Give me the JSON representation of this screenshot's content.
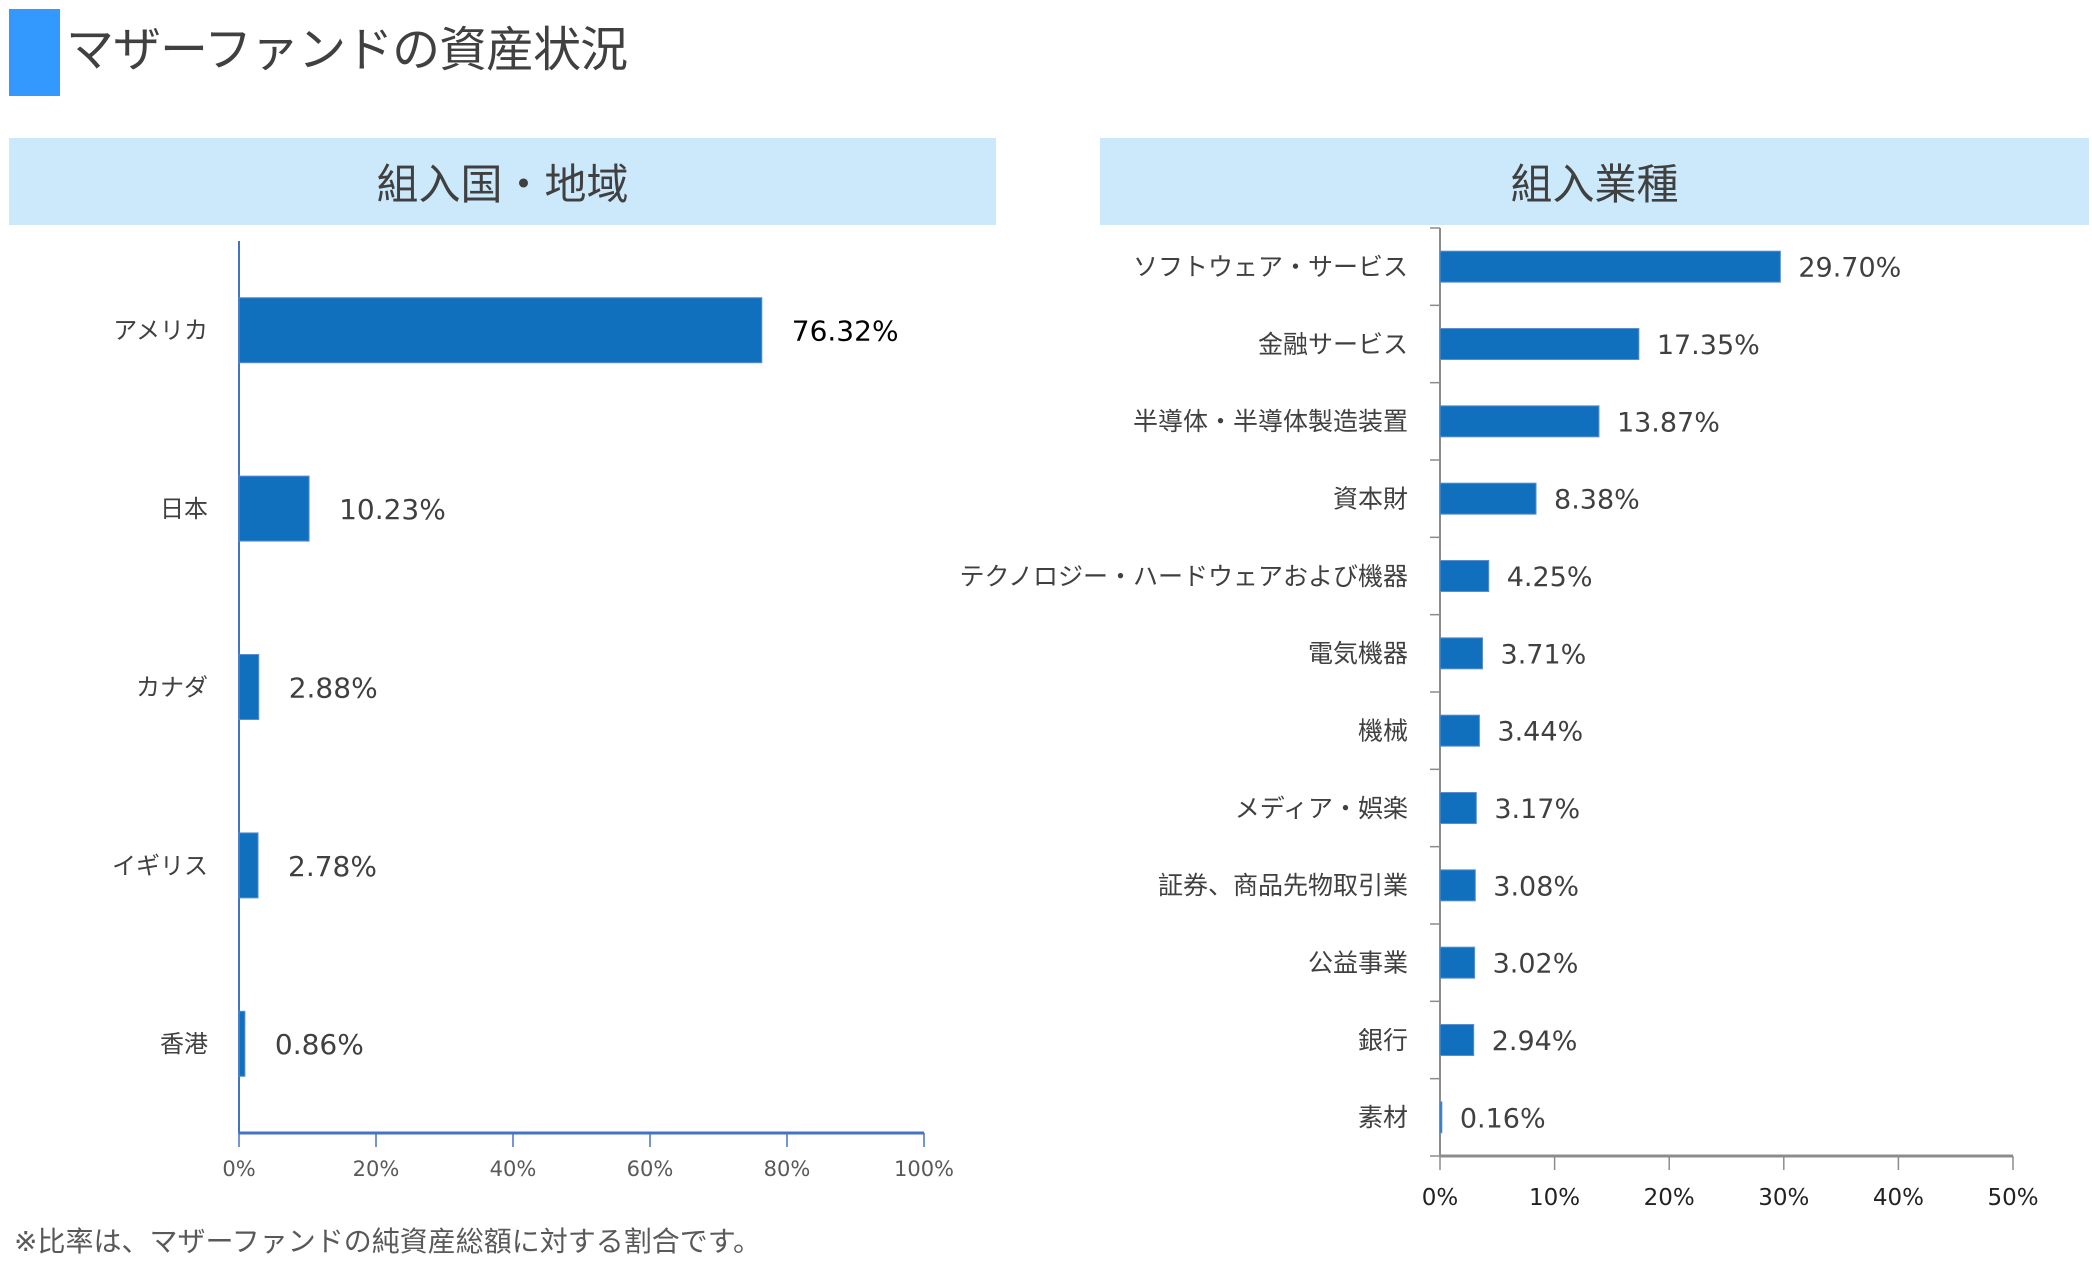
{
  "header": {
    "title": "マザーファンドの資産状況"
  },
  "colors": {
    "title_mark": "#3399FF",
    "band": "#CCE9FC",
    "bar": "#1170BD",
    "text": "#404040"
  },
  "chart_data": [
    {
      "type": "bar",
      "orientation": "horizontal",
      "title": "組入国・地域",
      "categories": [
        "アメリカ",
        "日本",
        "カナダ",
        "イギリス",
        "香港"
      ],
      "values": [
        76.32,
        10.23,
        2.88,
        2.78,
        0.86
      ],
      "data_labels": [
        "76.32%",
        "10.23%",
        "2.88%",
        "2.78%",
        "0.86%"
      ],
      "xlim": [
        0,
        100
      ],
      "x_ticks": [
        "0%",
        "20%",
        "40%",
        "60%",
        "80%",
        "100%"
      ],
      "grid": false
    },
    {
      "type": "bar",
      "orientation": "horizontal",
      "title": "組入業種",
      "categories": [
        "ソフトウェア・サービス",
        "金融サービス",
        "半導体・半導体製造装置",
        "資本財",
        "テクノロジー・ハードウェアおよび機器",
        "電気機器",
        "機械",
        "メディア・娯楽",
        "証券、商品先物取引業",
        "公益事業",
        "銀行",
        "素材"
      ],
      "values": [
        29.7,
        17.35,
        13.87,
        8.38,
        4.25,
        3.71,
        3.44,
        3.17,
        3.08,
        3.02,
        2.94,
        0.16
      ],
      "data_labels": [
        "29.70%",
        "17.35%",
        "13.87%",
        "8.38%",
        "4.25%",
        "3.71%",
        "3.44%",
        "3.17%",
        "3.08%",
        "3.02%",
        "2.94%",
        "0.16%"
      ],
      "xlim": [
        0,
        50
      ],
      "x_ticks": [
        "0%",
        "10%",
        "20%",
        "30%",
        "40%",
        "50%"
      ],
      "grid": false
    }
  ],
  "footnote": "※比率は、マザーファンドの純資産総額に対する割合です。"
}
